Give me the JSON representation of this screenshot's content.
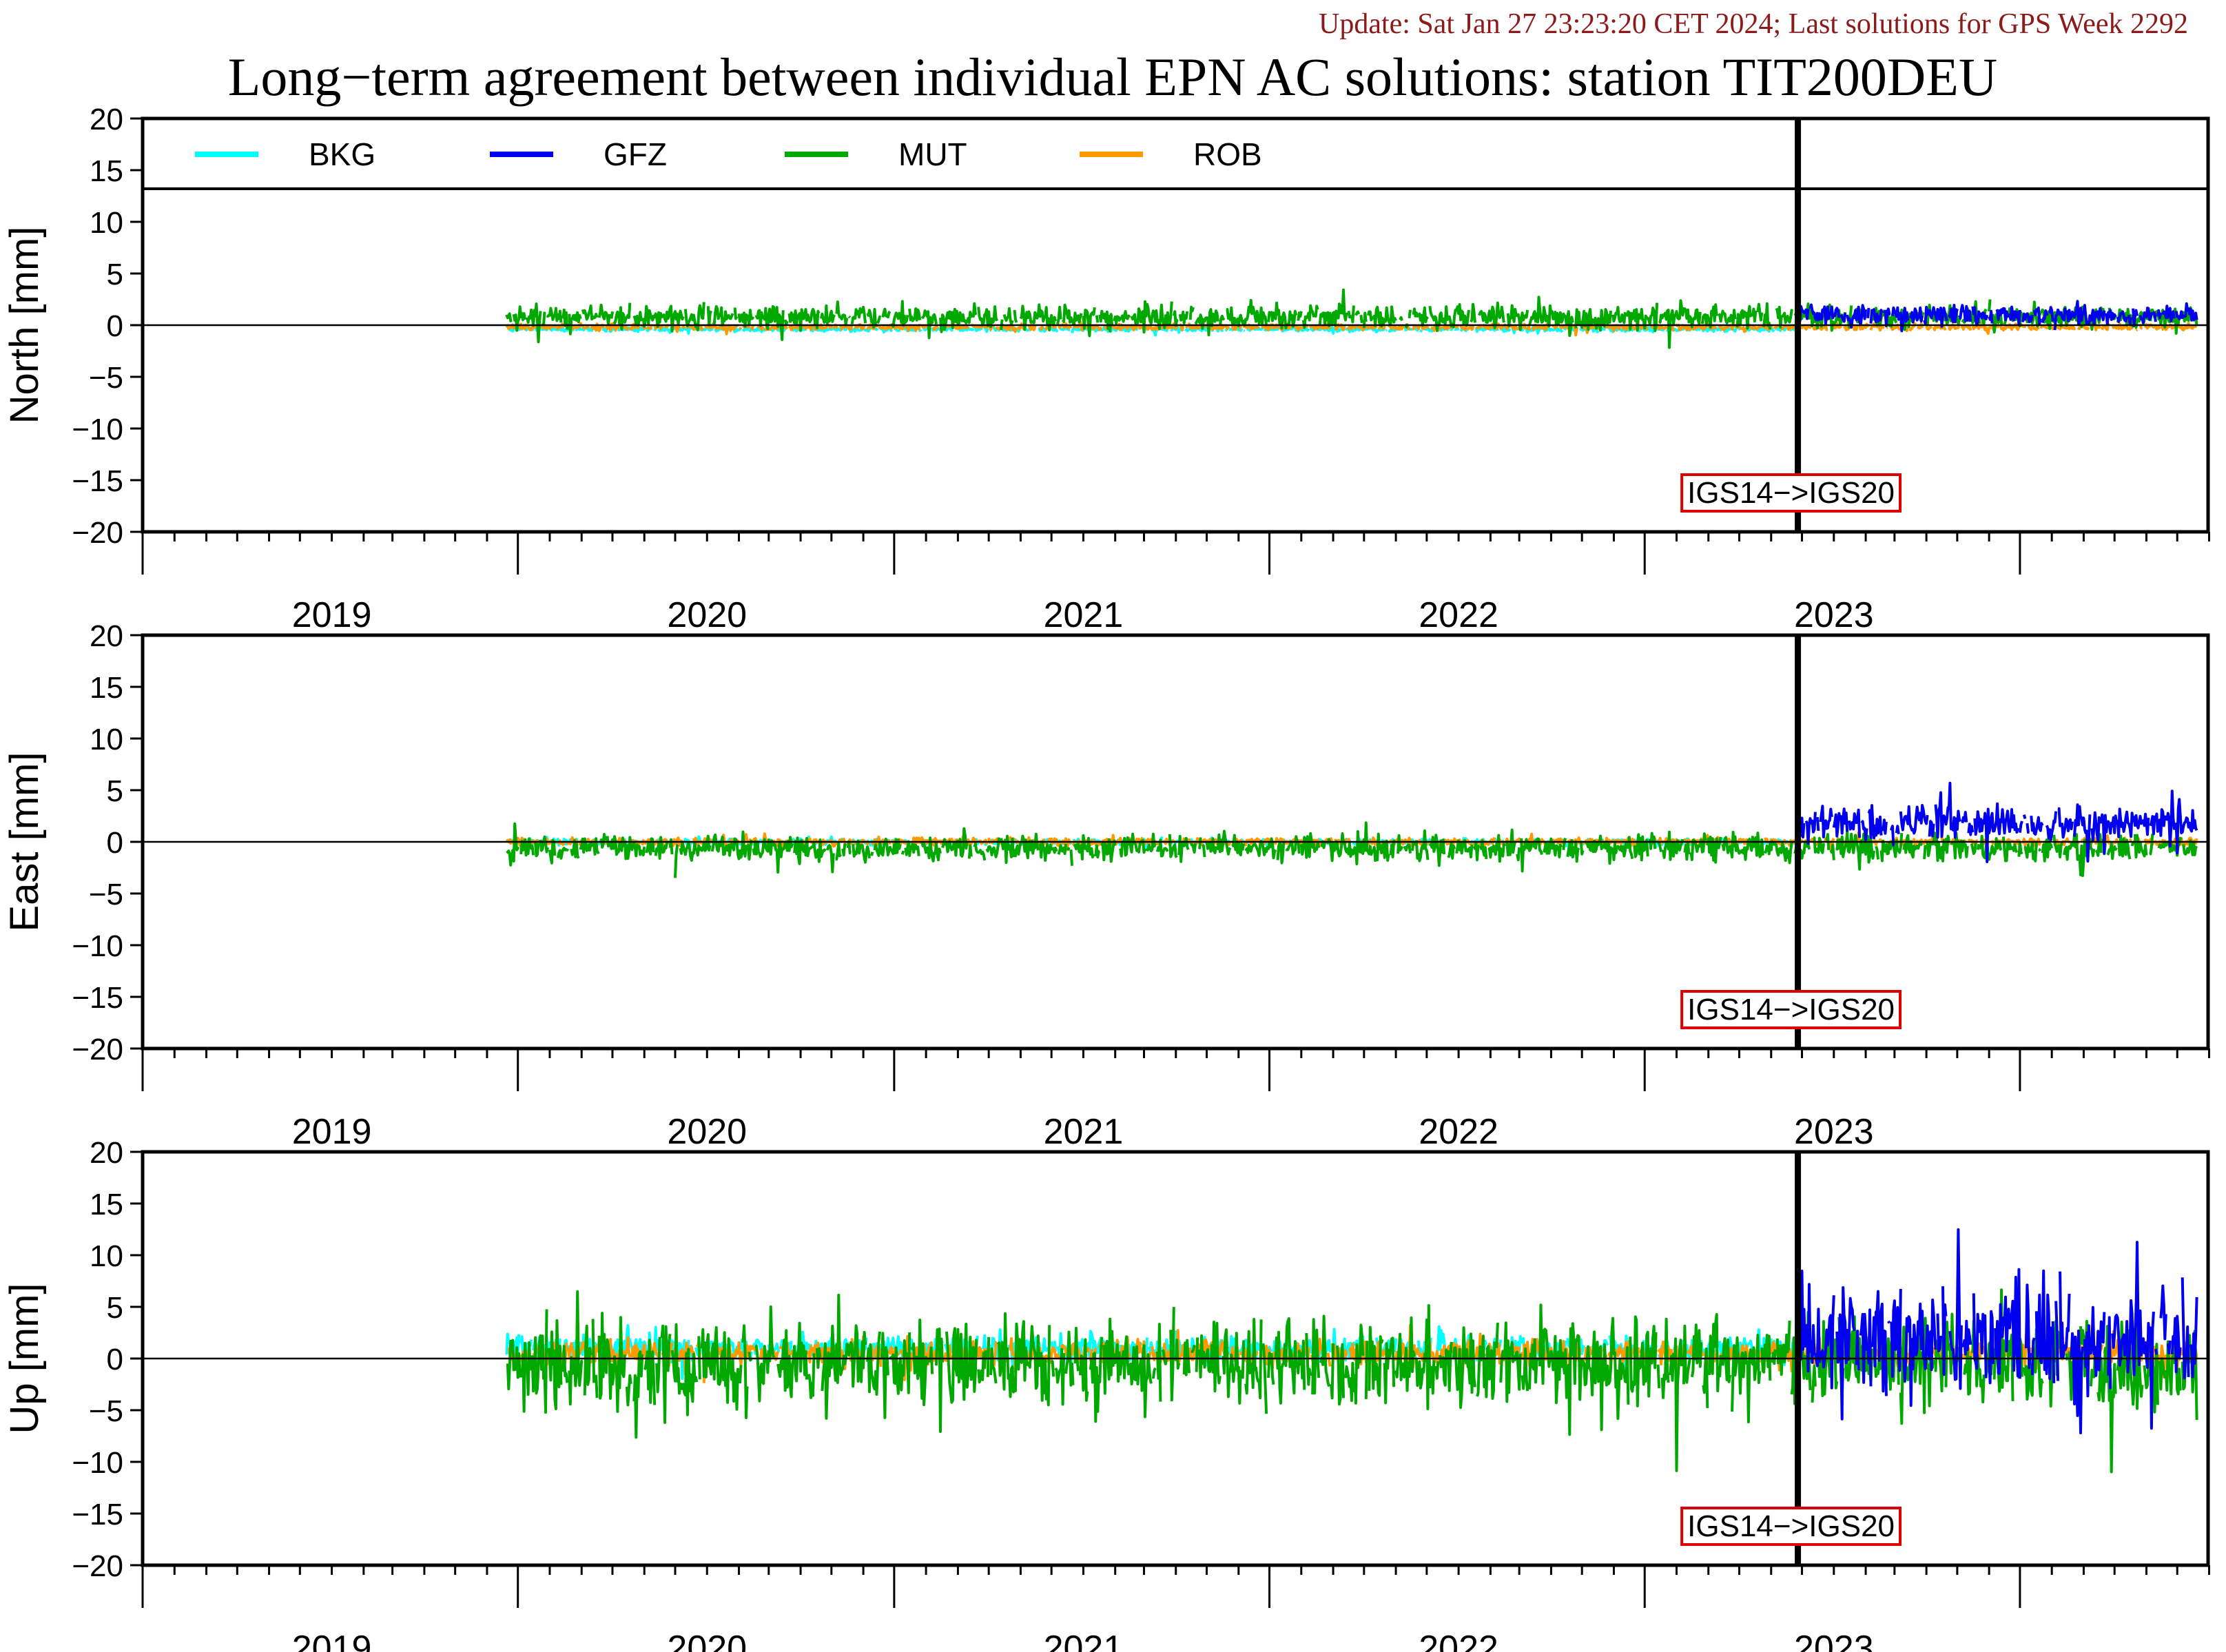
{
  "header": {
    "update_line": "Update: Sat Jan 27 23:23:20 CET 2024; Last solutions for GPS Week 2292",
    "title": "Long−term agreement between individual EPN AC solutions: station TIT200DEU"
  },
  "colors": {
    "update_text": "#8b1a1a",
    "BKG": "#00ffff",
    "GFZ": "#0000ee",
    "MUT": "#00a800",
    "ROB": "#ff9900",
    "annotation_border": "#dd0000"
  },
  "legend": [
    "BKG",
    "GFZ",
    "MUT",
    "ROB"
  ],
  "chart_data": [
    {
      "type": "line",
      "panel": "North",
      "ylabel": "North [mm]",
      "ylim": [
        -20,
        20
      ],
      "yticks": [
        "20",
        "15",
        "10",
        "5",
        "0",
        "−5",
        "−10",
        "−15",
        "−20"
      ],
      "xlim": [
        "2018-07-01",
        "2023-12-31"
      ],
      "year_labels": [
        "2019",
        "2020",
        "2021",
        "2022",
        "2023"
      ],
      "reference_change": {
        "date": "2022-11-27",
        "label": "IGS14−>IGS20"
      },
      "series": [
        {
          "name": "BKG",
          "x_range": [
            "2019-06-20",
            "2022-11-26"
          ],
          "mean": -0.4,
          "amplitude": 0.3
        },
        {
          "name": "GFZ",
          "x_range": [
            "2022-11-27",
            "2023-12-20"
          ],
          "mean": 1.0,
          "amplitude": 1.4
        },
        {
          "name": "MUT",
          "x_range": [
            "2019-06-20",
            "2023-12-20"
          ],
          "mean": 0.8,
          "amplitude": 1.6
        },
        {
          "name": "ROB",
          "x_range": [
            "2019-06-20",
            "2023-12-20"
          ],
          "mean": -0.2,
          "amplitude": 0.4
        }
      ]
    },
    {
      "type": "line",
      "panel": "East",
      "ylabel": "East [mm]",
      "ylim": [
        -20,
        20
      ],
      "yticks": [
        "20",
        "15",
        "10",
        "5",
        "0",
        "−5",
        "−10",
        "−15",
        "−20"
      ],
      "xlim": [
        "2018-07-01",
        "2023-12-31"
      ],
      "year_labels": [
        "2019",
        "2020",
        "2021",
        "2022",
        "2023"
      ],
      "reference_change": {
        "date": "2022-11-27",
        "label": "IGS14−>IGS20"
      },
      "series": [
        {
          "name": "BKG",
          "x_range": [
            "2019-06-20",
            "2022-11-26"
          ],
          "mean": 0.0,
          "amplitude": 0.4
        },
        {
          "name": "GFZ",
          "x_range": [
            "2022-11-27",
            "2023-12-20"
          ],
          "mean": 1.8,
          "amplitude": 2.3
        },
        {
          "name": "MUT",
          "x_range": [
            "2019-06-20",
            "2023-12-20"
          ],
          "mean": -0.6,
          "amplitude": 1.8
        },
        {
          "name": "ROB",
          "x_range": [
            "2019-06-20",
            "2023-12-20"
          ],
          "mean": 0.0,
          "amplitude": 0.5
        }
      ]
    },
    {
      "type": "line",
      "panel": "Up",
      "ylabel": "Up [mm]",
      "ylim": [
        -20,
        20
      ],
      "yticks": [
        "20",
        "15",
        "10",
        "5",
        "0",
        "−5",
        "−10",
        "−15",
        "−20"
      ],
      "xlim": [
        "2018-07-01",
        "2023-12-31"
      ],
      "year_labels": [
        "2019",
        "2020",
        "2021",
        "2022",
        "2023"
      ],
      "reference_change": {
        "date": "2022-11-27",
        "label": "IGS14−>IGS20"
      },
      "series": [
        {
          "name": "BKG",
          "x_range": [
            "2019-06-20",
            "2022-11-26"
          ],
          "mean": 1.0,
          "amplitude": 1.6
        },
        {
          "name": "GFZ",
          "x_range": [
            "2022-11-27",
            "2023-12-20"
          ],
          "mean": 2.0,
          "amplitude": 7.5
        },
        {
          "name": "MUT",
          "x_range": [
            "2019-06-20",
            "2023-12-20"
          ],
          "mean": -0.5,
          "amplitude": 6.0
        },
        {
          "name": "ROB",
          "x_range": [
            "2019-06-20",
            "2023-12-20"
          ],
          "mean": 0.5,
          "amplitude": 1.6
        }
      ]
    }
  ]
}
